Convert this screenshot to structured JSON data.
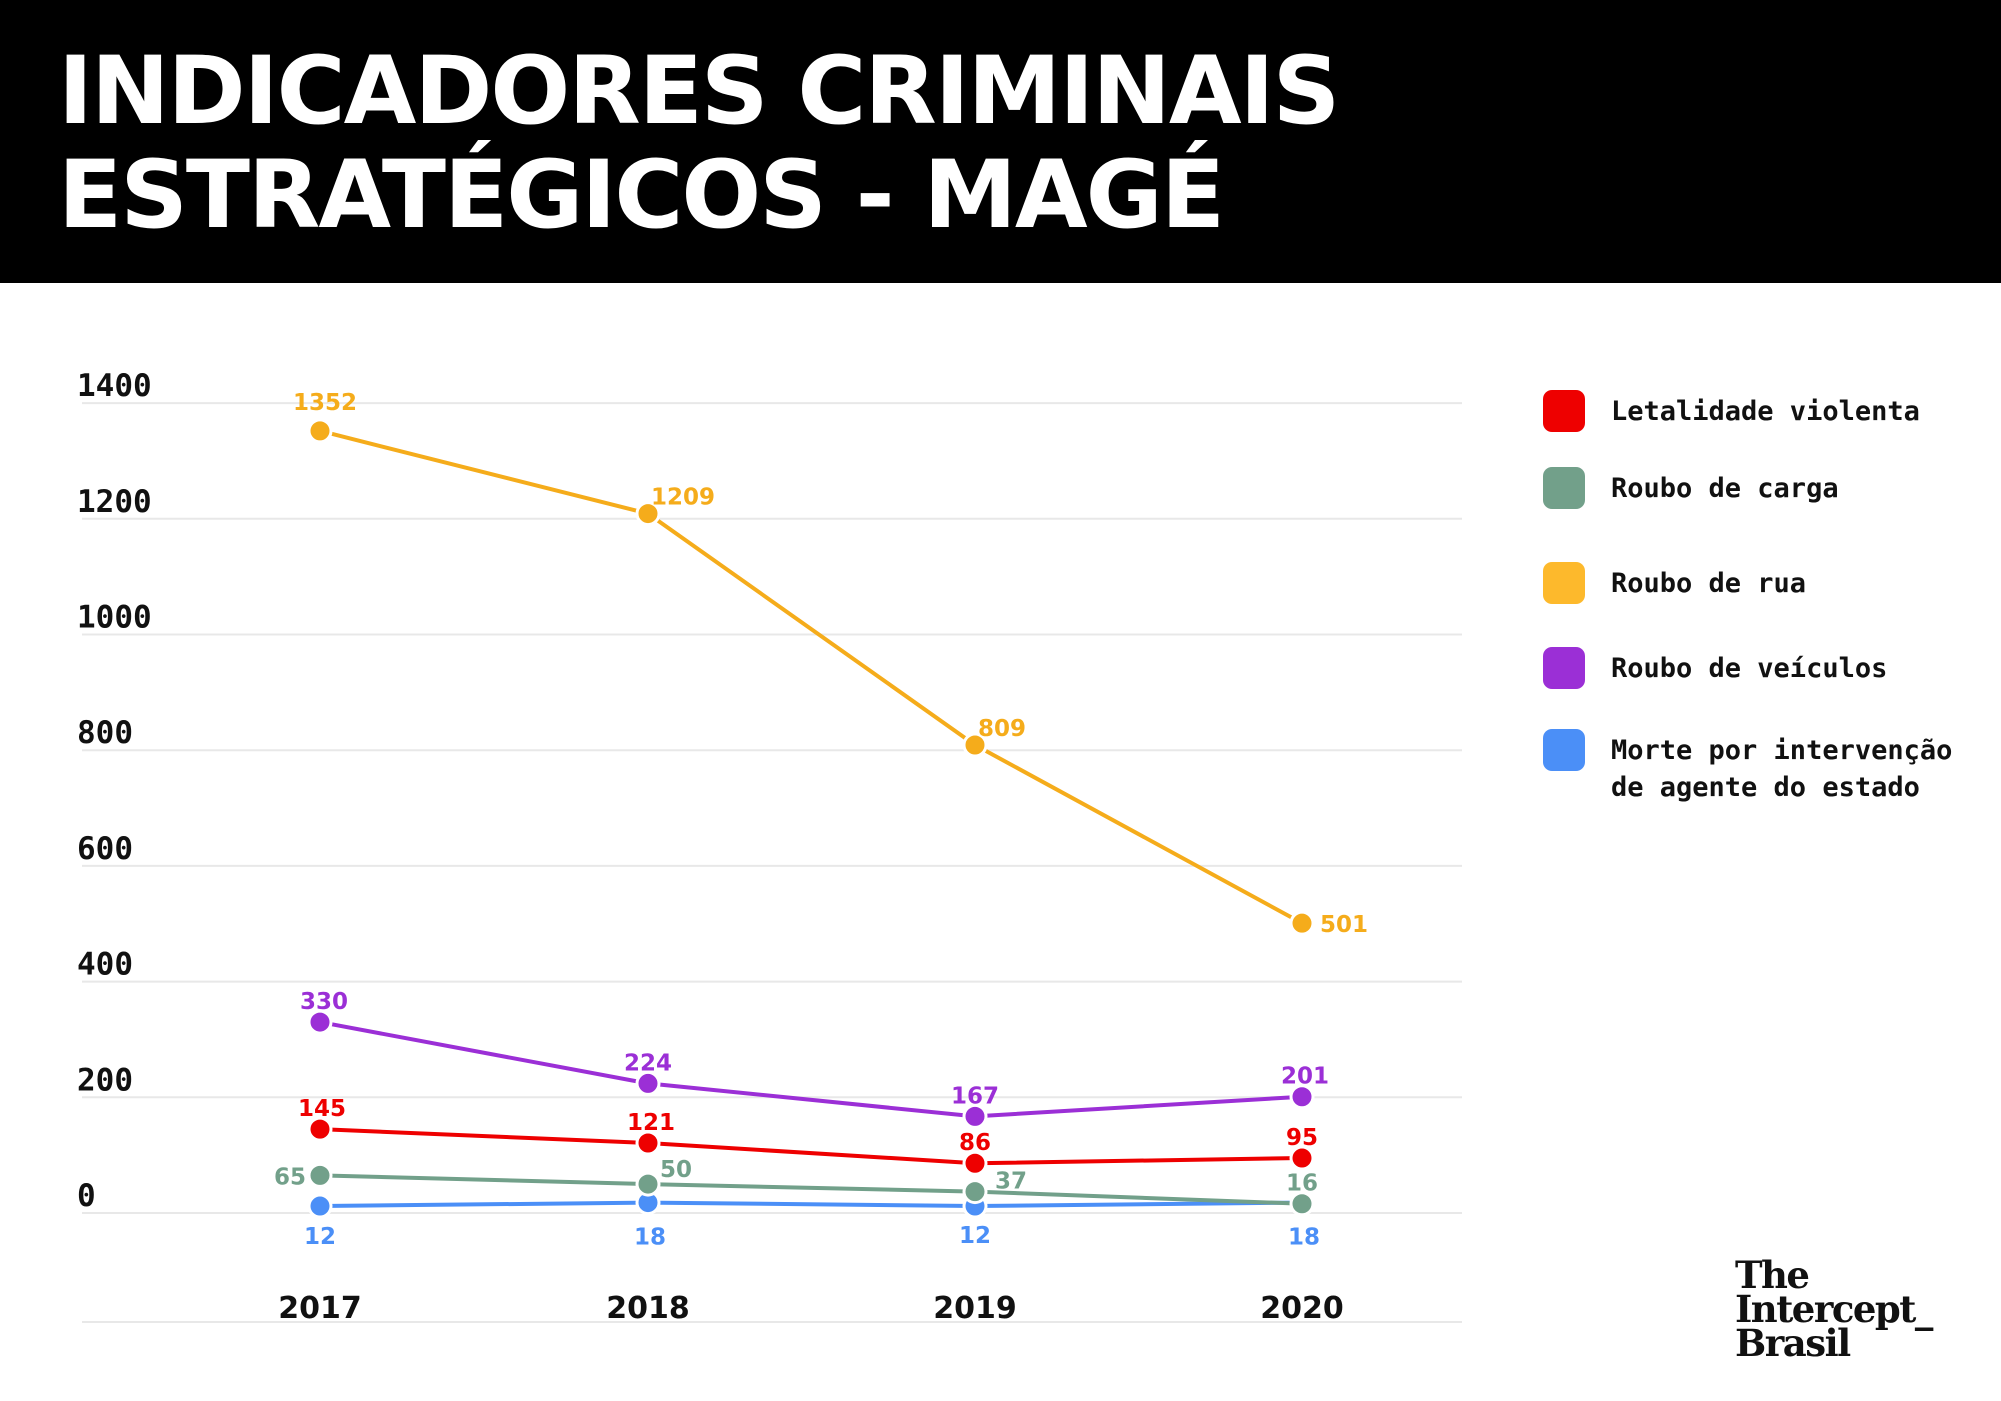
{
  "header": {
    "title_line1": "INDICADORES CRIMINAIS",
    "title_line2": "ESTRATÉGICOS - MAGÉ"
  },
  "chart_data": {
    "type": "line",
    "title": "INDICADORES CRIMINAIS ESTRATÉGICOS - MAGÉ",
    "xlabel": "",
    "ylabel": "",
    "categories": [
      "2017",
      "2018",
      "2019",
      "2020"
    ],
    "y_ticks": [
      "0",
      "200",
      "400",
      "600",
      "800",
      "1000",
      "1200",
      "1400"
    ],
    "ylim": [
      0,
      1400
    ],
    "grid": "horizontal",
    "legend_position": "right",
    "series": [
      {
        "name": "Letalidade violenta",
        "color": "#ee0000",
        "values": [
          145,
          121,
          86,
          95
        ]
      },
      {
        "name": "Roubo de carga",
        "color": "#72a08a",
        "values": [
          65,
          50,
          37,
          16
        ]
      },
      {
        "name": "Roubo de rua",
        "color": "#f5ac1b",
        "values": [
          1352,
          1209,
          809,
          501
        ]
      },
      {
        "name": "Roubo de veículos",
        "color": "#9b2fd6",
        "values": [
          330,
          224,
          167,
          201
        ]
      },
      {
        "name": "Morte por intervenção de agente do estado",
        "color": "#4b8ff7",
        "values": [
          12,
          18,
          12,
          18
        ]
      }
    ]
  },
  "legend": {
    "items": [
      {
        "line1": "Letalidade violenta",
        "line2": "",
        "color": "#ee0000"
      },
      {
        "line1": "Roubo de carga",
        "line2": "",
        "color": "#72a08a"
      },
      {
        "line1": "Roubo de rua",
        "line2": "",
        "color": "#fdb92c"
      },
      {
        "line1": "Roubo de veículos",
        "line2": "",
        "color": "#9b2fd6"
      },
      {
        "line1": "Morte por intervenção",
        "line2": "de agente do estado",
        "color": "#4b8ff7"
      }
    ]
  },
  "logo": {
    "line1": "The",
    "line2": "Intercept_",
    "line3": "Brasil"
  }
}
